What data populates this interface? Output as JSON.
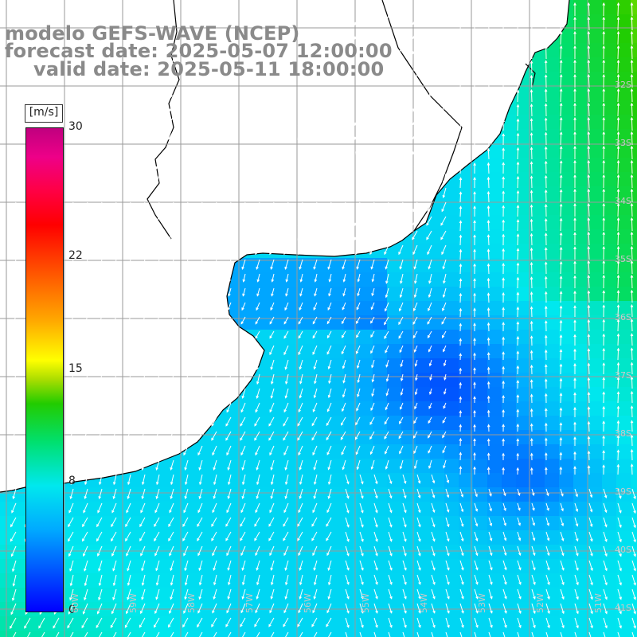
{
  "title": {
    "line1": "modelo GEFS-WAVE (NCEP)",
    "line2": "forecast date: 2025-05-07 12:00:00",
    "line3": "valid date: 2025-05-11 18:00:00"
  },
  "colorbar": {
    "unit": "[m/s]",
    "min": 0,
    "max": 30,
    "ticks": [
      "30",
      "22",
      "15",
      "8",
      "0"
    ],
    "tick_values": [
      30,
      22,
      15,
      8,
      0
    ],
    "colors": [
      "#0000ff",
      "#00aaff",
      "#00e8ee",
      "#00e070",
      "#22cc00",
      "#ffff00",
      "#ffaa00",
      "#ff0000",
      "#c0007f"
    ]
  },
  "latitude_labels": [
    "32S",
    "33S",
    "34S",
    "35S",
    "36S",
    "37S",
    "38S",
    "39S",
    "40S",
    "41S"
  ],
  "longitude_labels": [
    "60W",
    "59W",
    "58W",
    "57W",
    "56W",
    "55W",
    "54W",
    "53W",
    "52W",
    "51W"
  ],
  "colors": {
    "land": "#ffffff",
    "coastline": "#000000",
    "grid": "#9a9a9a",
    "title": "#8a8a8a",
    "arrow": "#ffffff"
  }
}
